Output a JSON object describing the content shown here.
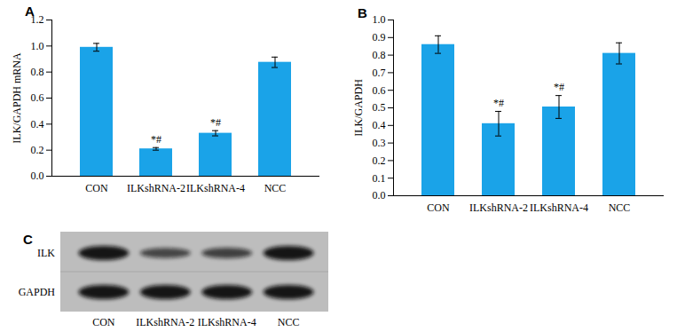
{
  "chart_data": [
    {
      "type": "bar",
      "title": "A",
      "categories": [
        "CON",
        "ILKshRNA-2",
        "ILKshRNA-4",
        "NCC"
      ],
      "values": [
        0.99,
        0.21,
        0.33,
        0.875
      ],
      "errors": [
        0.03,
        0.01,
        0.02,
        0.04
      ],
      "annotations": [
        null,
        "*#",
        "*#",
        null
      ],
      "color": "#1aa3e8",
      "y_label": "ILK/GAPDH mRNA",
      "ylim": [
        0,
        1.2
      ],
      "yticks": [
        {
          "value": 0,
          "label": "0.0"
        },
        0.2,
        0.4,
        0.6,
        0.8,
        {
          "value": 1,
          "label": "1.0"
        },
        1.2
      ],
      "grid": false
    },
    {
      "type": "bar",
      "title": "B",
      "categories": [
        "CON",
        "ILKshRNA-2",
        "ILKshRNA-4",
        "NCC"
      ],
      "values": [
        0.86,
        0.41,
        0.505,
        0.81
      ],
      "errors": [
        0.05,
        0.07,
        0.065,
        0.06
      ],
      "annotations": [
        null,
        "*#",
        "*#",
        null
      ],
      "color": "#1aa3e8",
      "y_label": "ILK/GAPDH",
      "ylim": [
        0,
        1.0
      ],
      "yticks": [
        {
          "value": 0,
          "label": "0.0"
        },
        0.1,
        0.2,
        0.3,
        0.4,
        0.5,
        0.6,
        0.7,
        0.8,
        0.9,
        {
          "value": 1,
          "label": "1.0"
        }
      ],
      "grid": false
    }
  ],
  "blot": {
    "title": "C",
    "rows": [
      "ILK",
      "GAPDH"
    ],
    "lanes": [
      "CON",
      "ILKshRNA-2",
      "ILKshRNA-4",
      "NCC"
    ],
    "intensity": [
      [
        1,
        0.55,
        0.6,
        1
      ],
      [
        1,
        1,
        1,
        1
      ]
    ]
  }
}
